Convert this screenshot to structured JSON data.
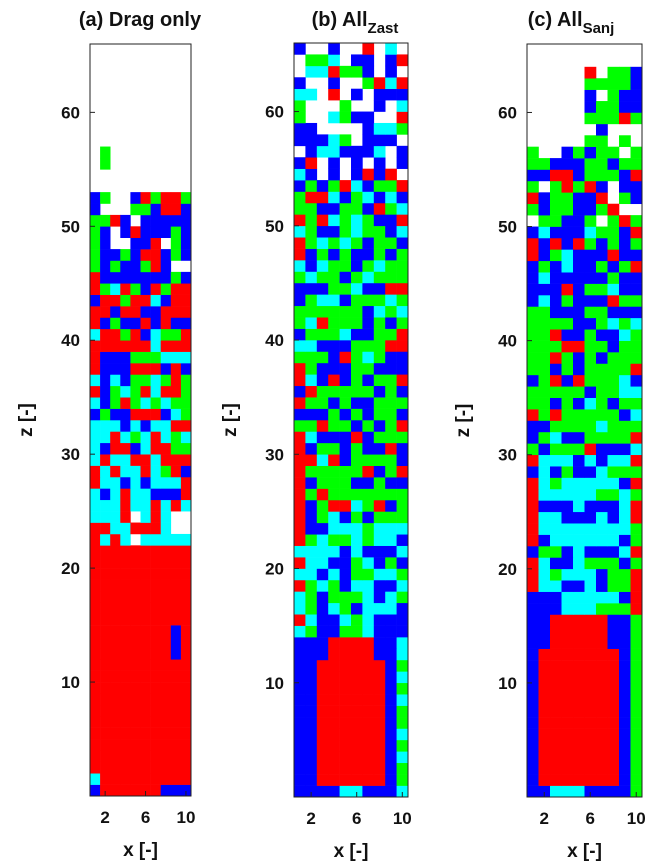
{
  "chart_data": [
    {
      "type": "heatmap",
      "title": "(a) Drag only",
      "title_main": "(a) Drag only",
      "title_sub": "",
      "xlabel": "x [-]",
      "ylabel": "z [-]",
      "x_ticks": [
        2,
        6,
        10
      ],
      "y_ticks": [
        10,
        20,
        30,
        40,
        50,
        60
      ],
      "xlim": [
        0.5,
        10.5
      ],
      "ylim": [
        0,
        66
      ],
      "grid": false,
      "legend": "none",
      "color_bands": [
        {
          "z": [
            0,
            1
          ],
          "color": "#0000ff"
        },
        {
          "z": [
            1,
            9
          ],
          "color": "#ff0000"
        },
        {
          "z": [
            9,
            22
          ],
          "color": "#ff0000"
        },
        {
          "z": [
            22,
            26
          ],
          "color": "#00ffff"
        },
        {
          "z": [
            26,
            28
          ],
          "color": "#ff0000"
        },
        {
          "z": [
            28,
            33
          ],
          "color": "#00ffff"
        },
        {
          "z": [
            33,
            38
          ],
          "color": "#00ff00"
        },
        {
          "z": [
            38,
            45
          ],
          "color": "#ff0000"
        },
        {
          "z": [
            45,
            53
          ],
          "color": "#0000ff"
        }
      ]
    },
    {
      "type": "heatmap",
      "title": "(b) All_Zast",
      "title_main": "(b) All",
      "title_sub": "Zast",
      "xlabel": "x [-]",
      "ylabel": "z [-]",
      "x_ticks": [
        2,
        6,
        10
      ],
      "y_ticks": [
        10,
        20,
        30,
        40,
        50,
        60
      ],
      "xlim": [
        0.5,
        10.5
      ],
      "ylim": [
        0,
        66
      ],
      "grid": false,
      "legend": "none",
      "color_bands": [
        {
          "z": [
            0,
            14
          ],
          "color": "#0000ff"
        },
        {
          "z": [
            14,
            24
          ],
          "color": "#00ffff"
        },
        {
          "z": [
            24,
            36
          ],
          "color": "#00ff00"
        },
        {
          "z": [
            36,
            44
          ],
          "color": "#0000ff"
        },
        {
          "z": [
            44,
            54
          ],
          "color": "#00ff00"
        },
        {
          "z": [
            54,
            66
          ],
          "color": "#0000ff"
        }
      ]
    },
    {
      "type": "heatmap",
      "title": "(c) All_Sanj",
      "title_main": "(c) All",
      "title_sub": "Sanj",
      "xlabel": "x [-]",
      "ylabel": "z [-]",
      "x_ticks": [
        2,
        6,
        10
      ],
      "y_ticks": [
        10,
        20,
        30,
        40,
        50,
        60
      ],
      "xlim": [
        0.5,
        10.5
      ],
      "ylim": [
        0,
        66
      ],
      "grid": false,
      "legend": "none",
      "color_bands": [
        {
          "z": [
            0,
            16
          ],
          "color": "#0000ff"
        },
        {
          "z": [
            16,
            30
          ],
          "color": "#00ffff"
        },
        {
          "z": [
            30,
            42
          ],
          "color": "#00ff00"
        },
        {
          "z": [
            42,
            50
          ],
          "color": "#0000ff"
        },
        {
          "z": [
            50,
            64
          ],
          "color": "#00ff00"
        }
      ]
    }
  ]
}
